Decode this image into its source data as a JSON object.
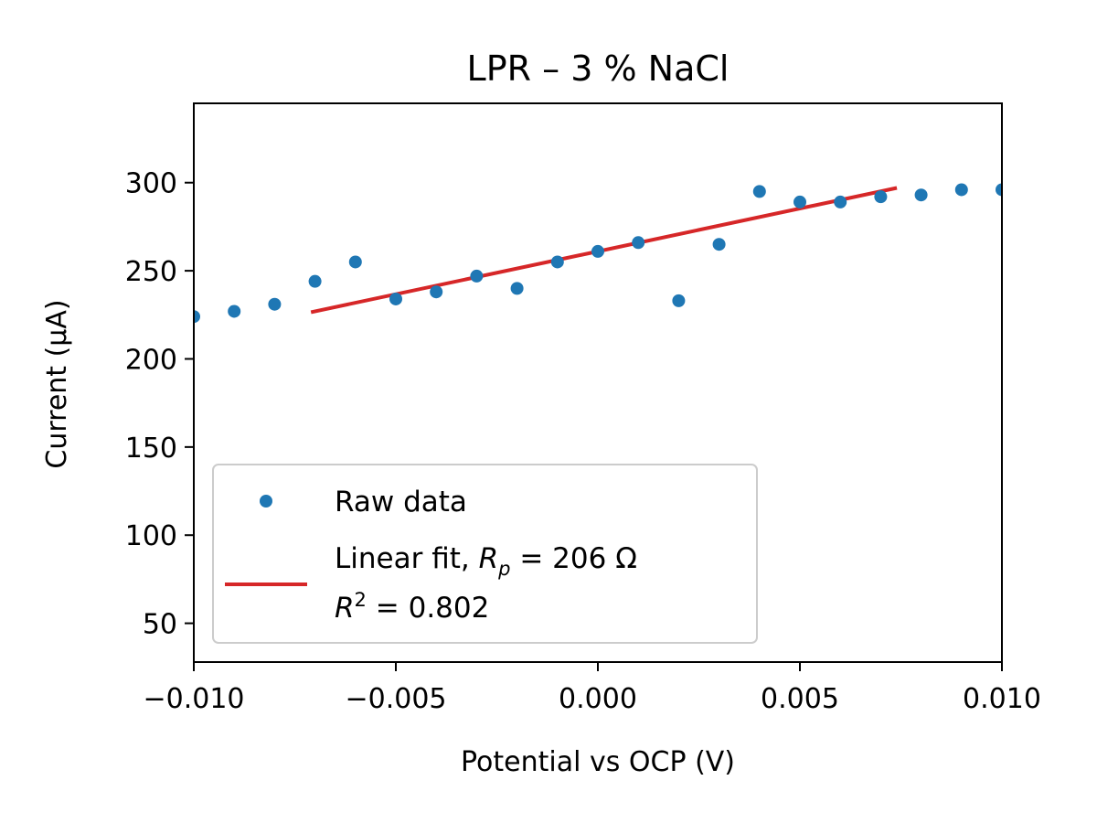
{
  "chart_data": {
    "type": "scatter",
    "title": "LPR – 3 % NaCl",
    "xlabel": "Potential vs OCP (V)",
    "ylabel": "Current (µA)",
    "xlim": [
      -0.01,
      0.01
    ],
    "ylim": [
      28,
      345
    ],
    "x_ticks": [
      -0.01,
      -0.005,
      0.0,
      0.005,
      0.01
    ],
    "x_tick_labels": [
      "−0.010",
      "−0.005",
      "0.000",
      "0.005",
      "0.010"
    ],
    "y_ticks": [
      50,
      100,
      150,
      200,
      250,
      300
    ],
    "y_tick_labels": [
      "50",
      "100",
      "150",
      "200",
      "250",
      "300"
    ],
    "grid": false,
    "legend_position": "lower-left",
    "series": [
      {
        "name": "Raw data",
        "kind": "scatter",
        "color": "#1f77b4",
        "x": [
          -0.01,
          -0.009,
          -0.008,
          -0.007,
          -0.006,
          -0.005,
          -0.004,
          -0.003,
          -0.002,
          -0.001,
          0.0,
          0.001,
          0.002,
          0.003,
          0.004,
          0.005,
          0.006,
          0.007,
          0.008,
          0.009,
          0.01
        ],
        "y": [
          224,
          227,
          231,
          244,
          255,
          234,
          238,
          247,
          240,
          255,
          261,
          266,
          233,
          265,
          295,
          289,
          289,
          292,
          293,
          296,
          296
        ]
      },
      {
        "name": "Linear fit",
        "kind": "line",
        "color": "#d62728",
        "x": [
          -0.0071,
          0.0074
        ],
        "y": [
          226.5,
          297
        ]
      }
    ],
    "legend": [
      {
        "series": 0,
        "label": "Raw data"
      },
      {
        "series": 1,
        "label_prefix": "Linear fit, ",
        "label_rp": "R",
        "label_rp_sub": "p",
        "label_rp_value": " = 206 Ω",
        "label_r2": "R",
        "label_r2_sup": "2",
        "label_r2_value": " = 0.802"
      }
    ]
  }
}
